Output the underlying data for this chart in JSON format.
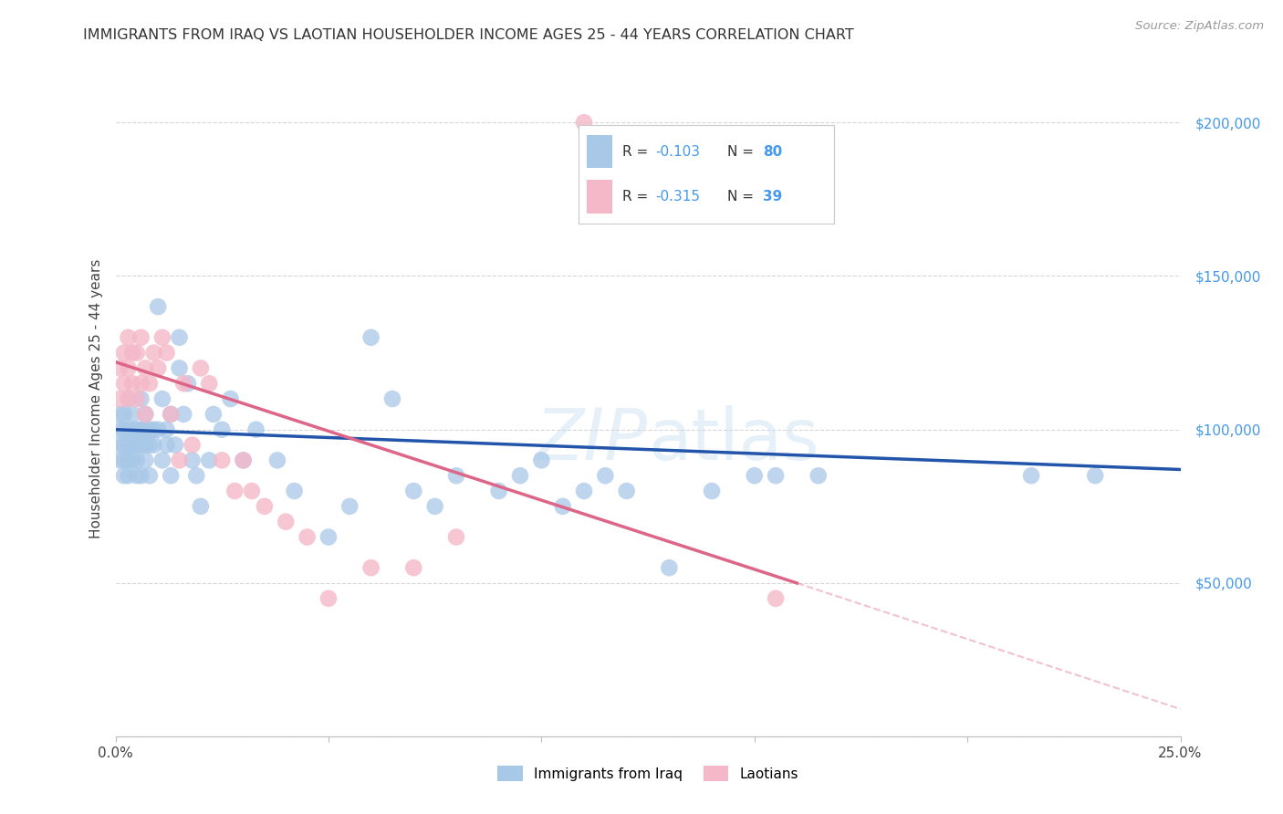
{
  "title": "IMMIGRANTS FROM IRAQ VS LAOTIAN HOUSEHOLDER INCOME AGES 25 - 44 YEARS CORRELATION CHART",
  "source": "Source: ZipAtlas.com",
  "ylabel": "Householder Income Ages 25 - 44 years",
  "xlim": [
    0.0,
    0.25
  ],
  "ylim": [
    0,
    220000
  ],
  "yticks": [
    0,
    50000,
    100000,
    150000,
    200000
  ],
  "ytick_labels": [
    "",
    "$50,000",
    "$100,000",
    "$150,000",
    "$200,000"
  ],
  "xticks": [
    0.0,
    0.05,
    0.1,
    0.15,
    0.2,
    0.25
  ],
  "xtick_labels": [
    "0.0%",
    "",
    "",
    "",
    "",
    "25.0%"
  ],
  "watermark": "ZIPatlas",
  "series1_label": "Immigrants from Iraq",
  "series2_label": "Laotians",
  "series1_color": "#a8c8e8",
  "series2_color": "#f4b8c8",
  "line1_color": "#2255aa",
  "line2_color": "#dd6688",
  "iraq_x": [
    0.001,
    0.001,
    0.001,
    0.001,
    0.002,
    0.002,
    0.002,
    0.002,
    0.002,
    0.003,
    0.003,
    0.003,
    0.003,
    0.003,
    0.004,
    0.004,
    0.004,
    0.004,
    0.005,
    0.005,
    0.005,
    0.005,
    0.006,
    0.006,
    0.006,
    0.006,
    0.007,
    0.007,
    0.007,
    0.007,
    0.008,
    0.008,
    0.008,
    0.009,
    0.009,
    0.01,
    0.01,
    0.011,
    0.011,
    0.012,
    0.012,
    0.013,
    0.013,
    0.014,
    0.015,
    0.015,
    0.016,
    0.017,
    0.018,
    0.019,
    0.02,
    0.022,
    0.023,
    0.025,
    0.027,
    0.03,
    0.033,
    0.038,
    0.042,
    0.05,
    0.055,
    0.06,
    0.065,
    0.07,
    0.075,
    0.08,
    0.09,
    0.095,
    0.1,
    0.105,
    0.11,
    0.115,
    0.12,
    0.13,
    0.14,
    0.15,
    0.155,
    0.165,
    0.215,
    0.23
  ],
  "iraq_y": [
    100000,
    95000,
    105000,
    90000,
    100000,
    95000,
    105000,
    90000,
    85000,
    100000,
    95000,
    110000,
    90000,
    85000,
    100000,
    95000,
    105000,
    90000,
    95000,
    100000,
    90000,
    85000,
    100000,
    110000,
    95000,
    85000,
    105000,
    100000,
    90000,
    95000,
    100000,
    95000,
    85000,
    95000,
    100000,
    140000,
    100000,
    110000,
    90000,
    95000,
    100000,
    85000,
    105000,
    95000,
    130000,
    120000,
    105000,
    115000,
    90000,
    85000,
    75000,
    90000,
    105000,
    100000,
    110000,
    90000,
    100000,
    90000,
    80000,
    65000,
    75000,
    130000,
    110000,
    80000,
    75000,
    85000,
    80000,
    85000,
    90000,
    75000,
    80000,
    85000,
    80000,
    55000,
    80000,
    85000,
    85000,
    85000,
    85000,
    85000
  ],
  "laos_x": [
    0.001,
    0.001,
    0.002,
    0.002,
    0.003,
    0.003,
    0.003,
    0.004,
    0.004,
    0.005,
    0.005,
    0.006,
    0.006,
    0.007,
    0.007,
    0.008,
    0.009,
    0.01,
    0.011,
    0.012,
    0.013,
    0.015,
    0.016,
    0.018,
    0.02,
    0.022,
    0.025,
    0.028,
    0.03,
    0.032,
    0.035,
    0.04,
    0.045,
    0.05,
    0.06,
    0.07,
    0.08,
    0.11,
    0.155
  ],
  "laos_y": [
    120000,
    110000,
    125000,
    115000,
    130000,
    120000,
    110000,
    125000,
    115000,
    125000,
    110000,
    130000,
    115000,
    120000,
    105000,
    115000,
    125000,
    120000,
    130000,
    125000,
    105000,
    90000,
    115000,
    95000,
    120000,
    115000,
    90000,
    80000,
    90000,
    80000,
    75000,
    70000,
    65000,
    45000,
    55000,
    55000,
    65000,
    200000,
    45000
  ],
  "line1_x0": 0.0,
  "line1_y0": 100000,
  "line1_x1": 0.25,
  "line1_y1": 87000,
  "line2_x0": 0.0,
  "line2_y0": 122000,
  "line2_x1": 0.16,
  "line2_y1": 50000,
  "line2_dash_x1": 0.25,
  "line2_dash_y1": 9000
}
